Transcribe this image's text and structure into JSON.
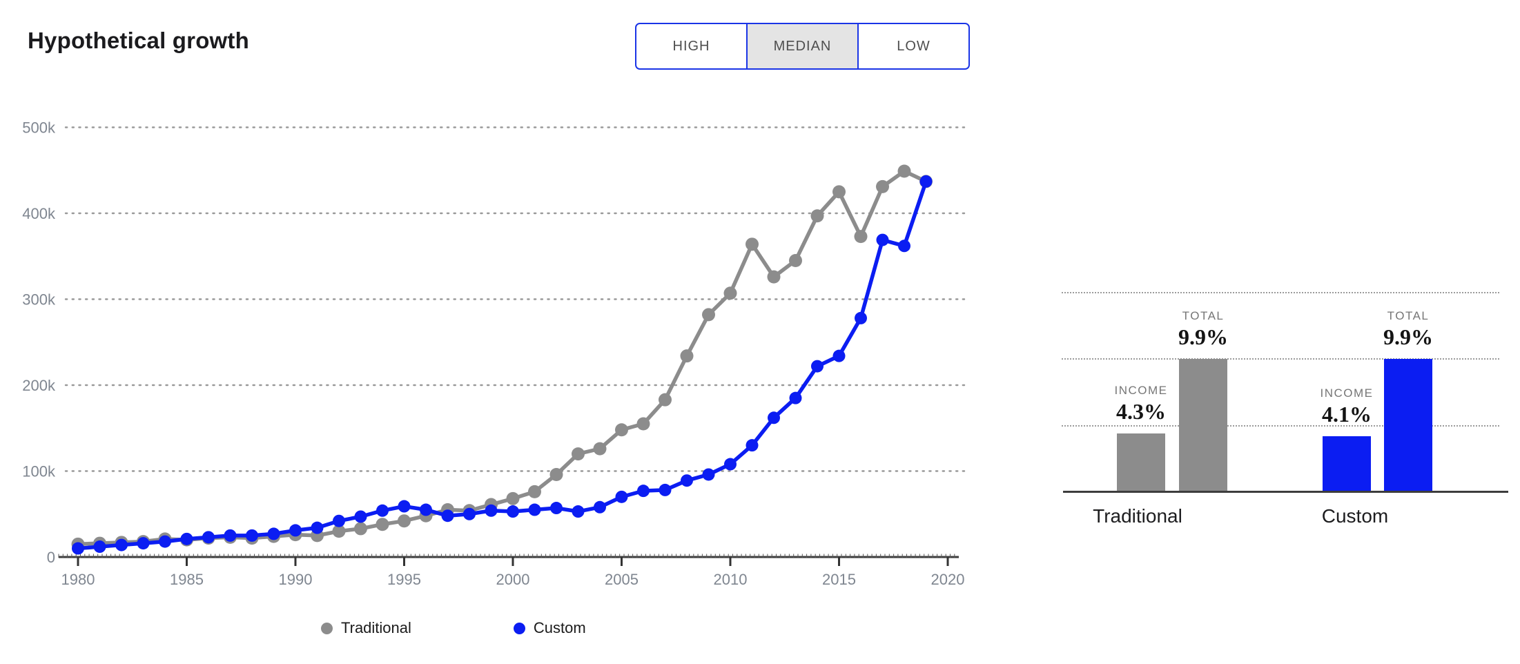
{
  "header": {
    "title": "Hypothetical growth"
  },
  "scenario_toggle": {
    "options": [
      {
        "label": "HIGH",
        "selected": false
      },
      {
        "label": "MEDIAN",
        "selected": true
      },
      {
        "label": "LOW",
        "selected": false
      }
    ]
  },
  "colors": {
    "traditional_gray": "#8c8c8c",
    "custom_blue": "#0b1df2",
    "button_border_blue": "#1a34e6",
    "selected_button_bg": "#e4e4e4",
    "grid_dot": "#999999",
    "axis_line": "#3d3d3d",
    "tick_label": "#7f8690",
    "text_dark": "#1b1b1e",
    "annotation_label_gray": "#767676"
  },
  "chart_data": [
    {
      "type": "line",
      "title": "Hypothetical growth",
      "xlabel": "",
      "ylabel": "",
      "x": [
        1980,
        1981,
        1982,
        1983,
        1984,
        1985,
        1986,
        1987,
        1988,
        1989,
        1990,
        1991,
        1992,
        1993,
        1994,
        1995,
        1996,
        1997,
        1998,
        1999,
        2000,
        2001,
        2002,
        2003,
        2004,
        2005,
        2006,
        2007,
        2008,
        2009,
        2010,
        2011,
        2012,
        2013,
        2014,
        2015,
        2016,
        2017,
        2018,
        2019
      ],
      "series": [
        {
          "name": "Traditional",
          "color": "#8c8c8c",
          "values": [
            15000,
            16000,
            17000,
            18000,
            21000,
            20000,
            22000,
            23000,
            22000,
            24000,
            26000,
            25000,
            30000,
            33000,
            38000,
            42000,
            48000,
            55000,
            54000,
            61000,
            68000,
            76000,
            96000,
            120000,
            126000,
            148000,
            155000,
            183000,
            234000,
            282000,
            307000,
            364000,
            326000,
            345000,
            397000,
            425000,
            373000,
            431000,
            449000,
            437000
          ]
        },
        {
          "name": "Custom",
          "color": "#0b1df2",
          "values": [
            10000,
            12000,
            14000,
            16000,
            18000,
            21000,
            23000,
            25000,
            25000,
            27000,
            31000,
            34000,
            42000,
            47000,
            54000,
            59000,
            55000,
            48000,
            50000,
            54000,
            53000,
            55000,
            57000,
            53000,
            58000,
            70000,
            77000,
            78000,
            89000,
            96000,
            108000,
            130000,
            162000,
            185000,
            222000,
            234000,
            278000,
            369000,
            362000,
            437000
          ]
        }
      ],
      "ylim": [
        0,
        500000
      ],
      "yticks": [
        0,
        100000,
        200000,
        300000,
        400000,
        500000
      ],
      "ytick_labels": [
        "0",
        "100k",
        "200k",
        "300k",
        "400k",
        "500k"
      ],
      "xticks": [
        1980,
        1985,
        1990,
        1995,
        2000,
        2005,
        2010,
        2015,
        2020
      ],
      "grid": "horizontal-dotted",
      "legend_position": "bottom",
      "legend": [
        {
          "label": "Traditional",
          "color": "#8c8c8c"
        },
        {
          "label": "Custom",
          "color": "#0b1df2"
        }
      ]
    },
    {
      "type": "bar",
      "unit": "%",
      "ylim": [
        0,
        17
      ],
      "gridlines_pct": [
        5,
        10,
        15
      ],
      "groups": [
        {
          "label": "Traditional",
          "color": "#8c8c8c",
          "bars": [
            {
              "label": "INCOME",
              "value": 4.3,
              "display": "4.3%"
            },
            {
              "label": "TOTAL",
              "value": 9.9,
              "display": "9.9%"
            }
          ]
        },
        {
          "label": "Custom",
          "color": "#0b1df2",
          "bars": [
            {
              "label": "INCOME",
              "value": 4.1,
              "display": "4.1%"
            },
            {
              "label": "TOTAL",
              "value": 9.9,
              "display": "9.9%"
            }
          ]
        }
      ]
    }
  ]
}
